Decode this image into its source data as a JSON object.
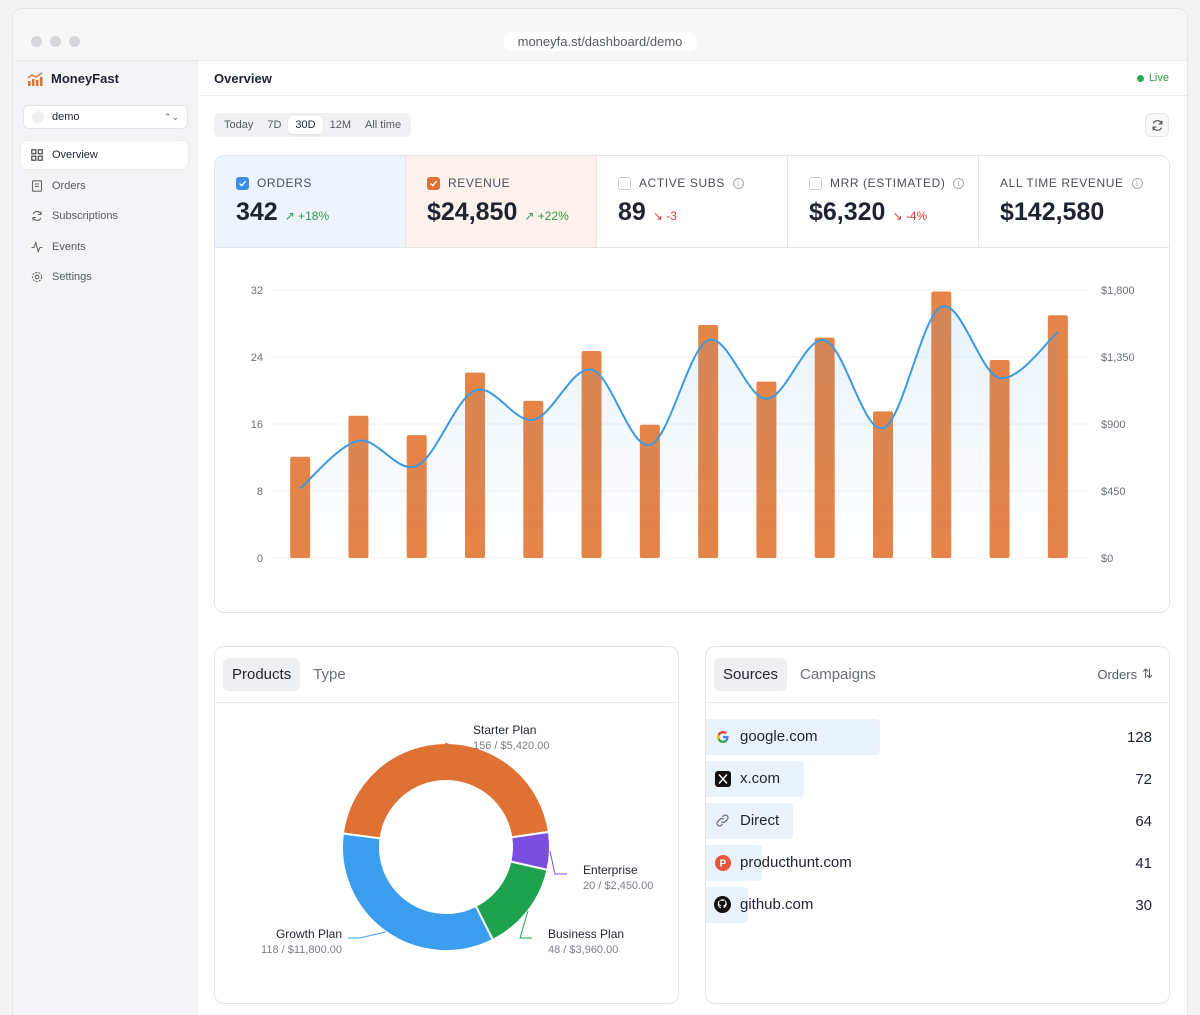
{
  "window": {
    "url": "moneyfa.st/dashboard/demo"
  },
  "sidebar": {
    "brand": "MoneyFast",
    "selector": "demo",
    "items": [
      {
        "label": "Overview",
        "icon": "grid-icon",
        "active": true
      },
      {
        "label": "Orders",
        "icon": "receipt-icon"
      },
      {
        "label": "Subscriptions",
        "icon": "refresh-icon"
      },
      {
        "label": "Events",
        "icon": "activity-icon"
      },
      {
        "label": "Settings",
        "icon": "gear-icon"
      }
    ]
  },
  "header": {
    "title": "Overview",
    "status": "Live"
  },
  "ranges": [
    "Today",
    "7D",
    "30D",
    "12M",
    "All time"
  ],
  "active_range": "30D",
  "metrics": [
    {
      "label": "ORDERS",
      "value": "342",
      "delta": "+18%",
      "dir": "up",
      "checked": true,
      "color": "#3b8fe3"
    },
    {
      "label": "REVENUE",
      "value": "$24,850",
      "delta": "+22%",
      "dir": "up",
      "checked": true,
      "color": "#e07134"
    },
    {
      "label": "ACTIVE SUBS",
      "value": "89",
      "delta": "-3",
      "dir": "down",
      "checked": false
    },
    {
      "label": "MRR (ESTIMATED)",
      "value": "$6,320",
      "delta": "-4%",
      "dir": "down",
      "checked": false
    },
    {
      "label": "ALL TIME REVENUE",
      "value": "$142,580",
      "delta": "",
      "dir": "",
      "checked": false
    }
  ],
  "chart_data": [
    {
      "type": "bar",
      "left_axis": {
        "ticks": [
          "0",
          "8",
          "16",
          "24",
          "32"
        ],
        "ylim": [
          0,
          32
        ]
      },
      "right_axis": {
        "ticks": [
          "$0",
          "$450",
          "$900",
          "$1,350",
          "$1,800"
        ],
        "ylim": [
          0,
          1800
        ]
      },
      "grid": true,
      "colors": {
        "bars": "#e58448",
        "line": "#3d9ae0"
      },
      "series": [
        {
          "axis": "right",
          "kind": "bar",
          "values": [
            680,
            955,
            825,
            1245,
            1055,
            1390,
            895,
            1565,
            1185,
            1480,
            985,
            1790,
            1330,
            1630
          ]
        },
        {
          "axis": "left",
          "kind": "line",
          "values": [
            8.3,
            14,
            11,
            20,
            16.5,
            22.5,
            13.5,
            26,
            19,
            26,
            15.5,
            30,
            21.5,
            27
          ]
        }
      ]
    },
    {
      "type": "pie",
      "donut": true,
      "slices": [
        {
          "label": "Starter Plan",
          "value": 156,
          "sub": "156 / $5,420.00",
          "color": "#e07134"
        },
        {
          "label": "Enterprise",
          "value": 20,
          "sub": "20 / $2,450.00",
          "color": "#7a4ee0"
        },
        {
          "label": "Business Plan",
          "value": 48,
          "sub": "48 / $3,960.00",
          "color": "#1fa24f"
        },
        {
          "label": "Growth Plan",
          "value": 118,
          "sub": "118 / $11,800.00",
          "color": "#3b9dee"
        }
      ]
    }
  ],
  "products_tabs": [
    "Products",
    "Type"
  ],
  "sources_tabs": [
    "Sources",
    "Campaigns"
  ],
  "sources_sort": "Orders",
  "sources": [
    {
      "name": "google.com",
      "count": 128,
      "icon": "google-icon"
    },
    {
      "name": "x.com",
      "count": 72,
      "icon": "x-icon"
    },
    {
      "name": "Direct",
      "count": 64,
      "icon": "link-icon"
    },
    {
      "name": "producthunt.com",
      "count": 41,
      "icon": "producthunt-icon"
    },
    {
      "name": "github.com",
      "count": 30,
      "icon": "github-icon"
    }
  ]
}
